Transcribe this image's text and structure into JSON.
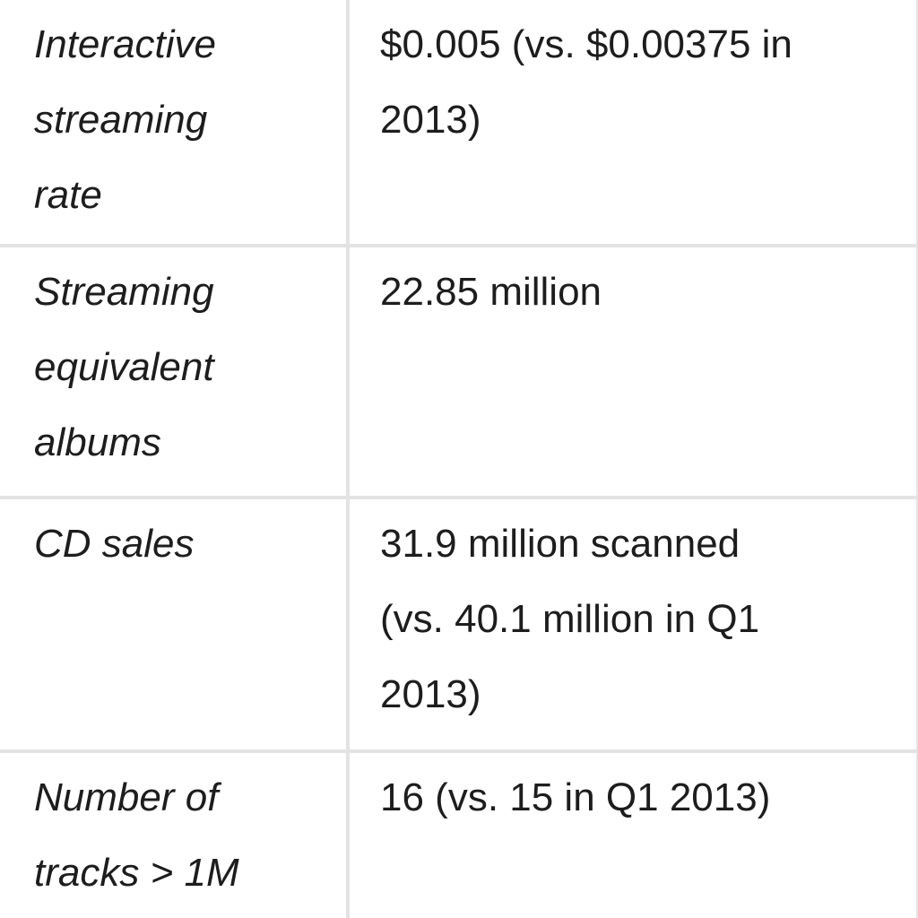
{
  "rows": [
    {
      "label_lines": [
        "Interactive",
        "streaming",
        "rate"
      ],
      "value_lines": [
        "$0.005 (vs. $0.00375 in",
        "2013)"
      ]
    },
    {
      "label_lines": [
        "Streaming",
        "equivalent",
        "albums"
      ],
      "value_lines": [
        "22.85 million"
      ]
    },
    {
      "label_lines": [
        "CD sales"
      ],
      "value_lines": [
        "31.9 million scanned",
        "(vs. 40.1 million in Q1",
        "2013)"
      ]
    },
    {
      "label_lines": [
        "Number of",
        "tracks > 1M"
      ],
      "value_lines": [
        "16 (vs. 15 in Q1 2013)"
      ]
    }
  ]
}
